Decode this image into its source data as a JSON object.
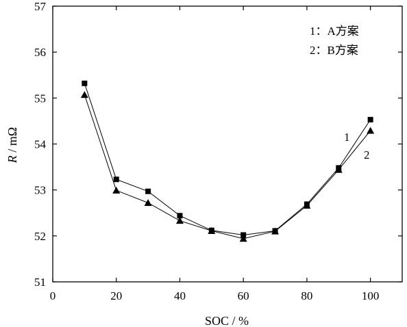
{
  "chart_data": {
    "type": "line",
    "xlabel": "SOC / %",
    "ylabel_italic": "R",
    "ylabel_rest": " / mΩ",
    "xlim": [
      0,
      110
    ],
    "ylim": [
      51,
      57
    ],
    "x_ticks": [
      0,
      20,
      40,
      60,
      80,
      100
    ],
    "y_ticks": [
      51,
      52,
      53,
      54,
      55,
      56,
      57
    ],
    "grid": false,
    "legend_position": "top-right",
    "legend": [
      "1：A方案",
      "2：B方案"
    ],
    "x": [
      10,
      20,
      30,
      40,
      50,
      60,
      70,
      80,
      90,
      100
    ],
    "series": [
      {
        "name": "1",
        "label": "1",
        "marker": "square",
        "values": [
          55.32,
          53.23,
          52.97,
          52.44,
          52.12,
          52.02,
          52.11,
          52.69,
          53.48,
          54.53
        ]
      },
      {
        "name": "2",
        "label": "2",
        "marker": "triangle",
        "values": [
          55.07,
          52.99,
          52.72,
          52.33,
          52.11,
          51.94,
          52.1,
          52.66,
          53.44,
          54.29
        ]
      }
    ]
  }
}
